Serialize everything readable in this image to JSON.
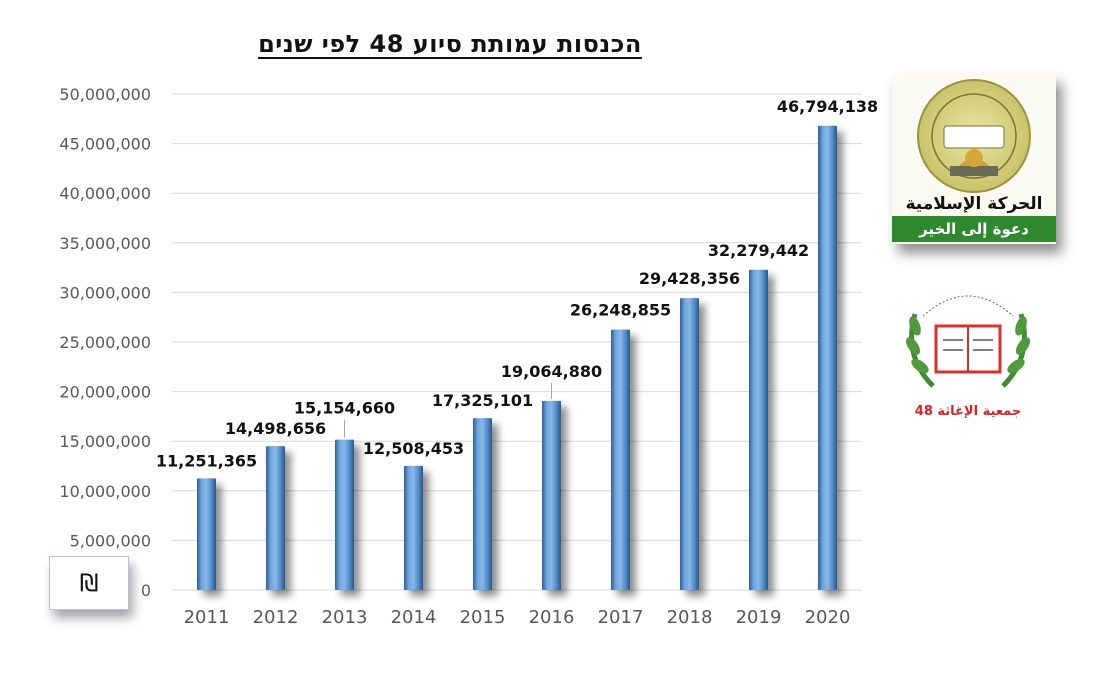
{
  "chart_data": {
    "type": "bar",
    "title": "הכנסות עמותת סיוע 48 לפי שנים",
    "categories": [
      "2011",
      "2012",
      "2013",
      "2014",
      "2015",
      "2016",
      "2017",
      "2018",
      "2019",
      "2020"
    ],
    "values": [
      11251365,
      14498656,
      15154660,
      12508453,
      17325101,
      19064880,
      26248855,
      29428356,
      32279442,
      46794138
    ],
    "value_labels": [
      "11,251,365",
      "14,498,656",
      "15,154,660",
      "12,508,453",
      "17,325,101",
      "19,064,880",
      "26,248,855",
      "29,428,356",
      "32,279,442",
      "46,794,138"
    ],
    "ylim": [
      0,
      50000000
    ],
    "y_ticks": [
      0,
      5000000,
      10000000,
      15000000,
      20000000,
      25000000,
      30000000,
      35000000,
      40000000,
      45000000,
      50000000
    ],
    "y_tick_labels": [
      "0",
      "5,000,000",
      "10,000,000",
      "15,000,000",
      "20,000,000",
      "25,000,000",
      "30,000,000",
      "35,000,000",
      "40,000,000",
      "45,000,000",
      "50,000,000"
    ],
    "xlabel": "",
    "ylabel": "",
    "grid": true,
    "bar_color": "#5b9bd5",
    "currency_symbol": "₪"
  },
  "logos": {
    "islamic_movement": {
      "name": "الحركة الإسلامية",
      "slogan": "دعوة إلى الخير"
    },
    "relief_society": {
      "name": "جمعية الإغاثة 48"
    }
  }
}
